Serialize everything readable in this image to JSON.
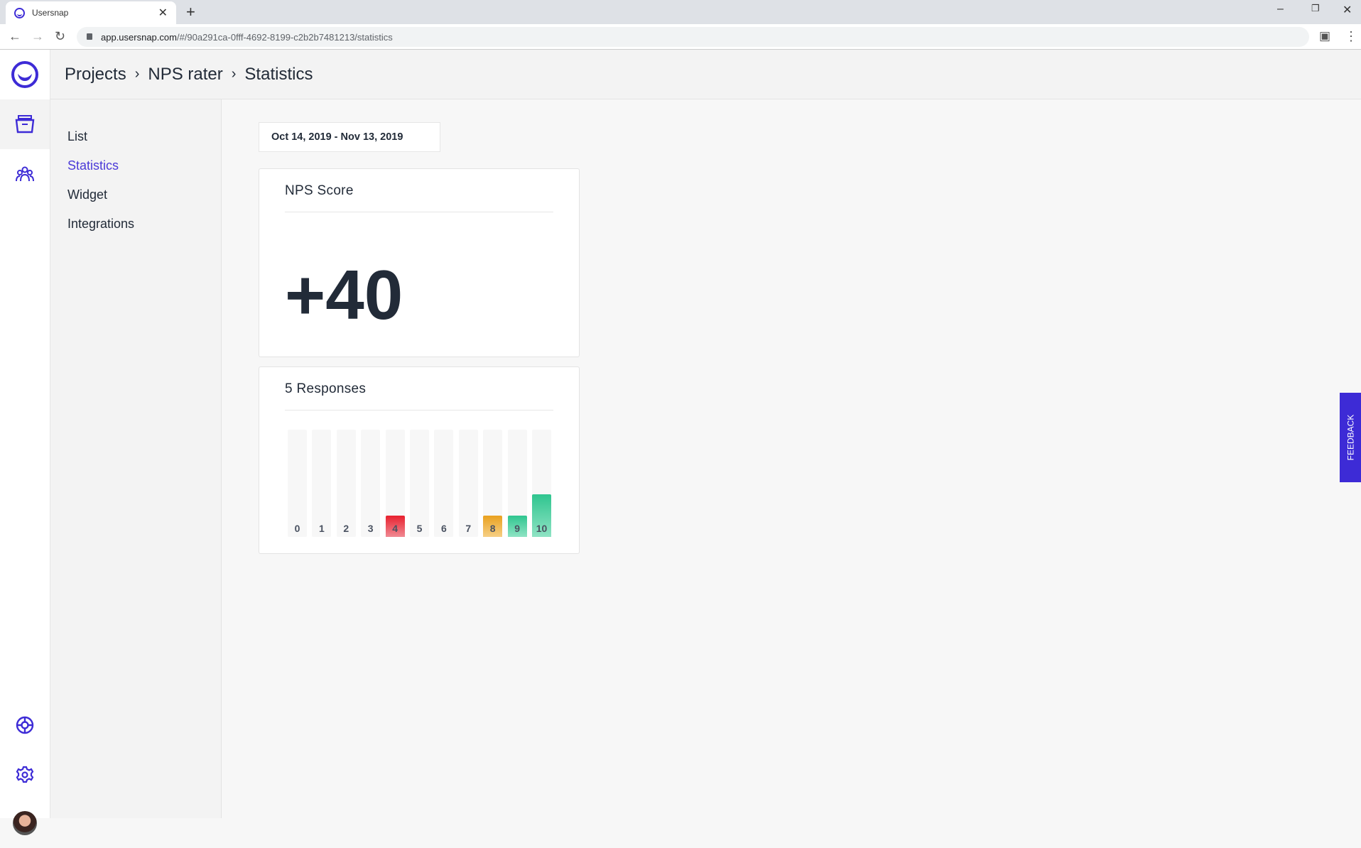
{
  "browser": {
    "tab_title": "Usersnap",
    "url_host": "app.usersnap.com",
    "url_path": "/#/90a291ca-0fff-4692-8199-c2b2b7481213/statistics"
  },
  "breadcrumb": [
    "Projects",
    "NPS rater",
    "Statistics"
  ],
  "subnav": {
    "items": [
      {
        "label": "List"
      },
      {
        "label": "Statistics",
        "active": true
      },
      {
        "label": "Widget"
      },
      {
        "label": "Integrations"
      }
    ]
  },
  "date_range": "Oct 14, 2019 - Nov 13, 2019",
  "nps_card": {
    "title": "NPS Score",
    "score": "+40"
  },
  "responses_card": {
    "title": "5 Responses"
  },
  "feedback_label": "FEEDBACK",
  "colors": {
    "accent": "#3d2bd6",
    "detractor": "#e8212f",
    "passive": "#e9a11f",
    "promoter": "#2fc58f"
  },
  "chart_data": {
    "type": "bar",
    "categories": [
      "0",
      "1",
      "2",
      "3",
      "4",
      "5",
      "6",
      "7",
      "8",
      "9",
      "10"
    ],
    "values": [
      0,
      0,
      0,
      0,
      1,
      0,
      0,
      0,
      1,
      1,
      2
    ],
    "total": 5
  }
}
